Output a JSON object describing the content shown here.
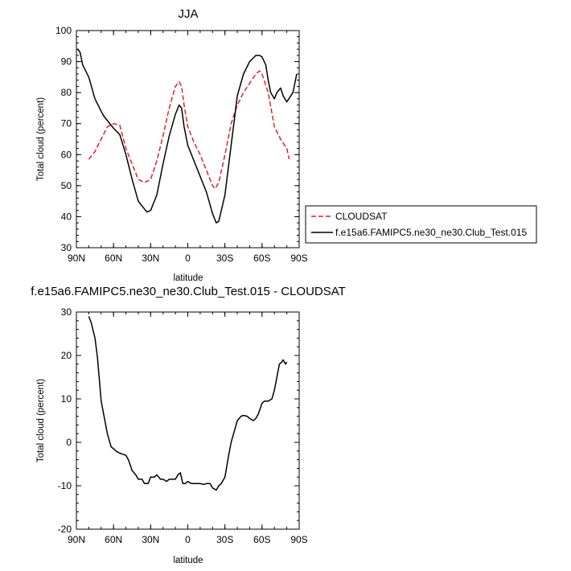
{
  "chart_data": [
    {
      "type": "line",
      "title": "JJA",
      "xlabel": "latitude",
      "ylabel": "Total cloud (percent)",
      "xlim": [
        90,
        -90
      ],
      "ylim": [
        30,
        100
      ],
      "xticks": [
        90,
        60,
        30,
        0,
        -30,
        -60,
        -90
      ],
      "xtick_labels": [
        "90N",
        "60N",
        "30N",
        "0",
        "30S",
        "60S",
        "90S"
      ],
      "yticks": [
        30,
        40,
        50,
        60,
        70,
        80,
        90,
        100
      ],
      "ytick_labels": [
        "30",
        "40",
        "50",
        "60",
        "70",
        "80",
        "90",
        "100"
      ],
      "legend_position": "right",
      "grid": false,
      "series": [
        {
          "name": "CLOUDSAT",
          "color": "#e0202a",
          "dash": "dashed",
          "x": [
            80,
            75,
            70,
            65,
            60,
            55,
            50,
            45,
            40,
            35,
            30,
            25,
            20,
            15,
            10,
            7,
            5,
            3,
            0,
            -5,
            -10,
            -15,
            -20,
            -22,
            -25,
            -30,
            -35,
            -40,
            -45,
            -50,
            -55,
            -58,
            -60,
            -65,
            -70,
            -75,
            -80,
            -82
          ],
          "y": [
            58.5,
            61,
            65,
            69,
            70,
            69.5,
            62,
            57,
            52,
            51,
            52,
            58,
            66,
            75,
            82,
            83.5,
            82,
            76,
            69,
            64,
            60,
            55,
            50,
            49,
            51,
            60,
            70,
            76,
            80,
            83,
            86,
            87,
            86,
            80,
            69,
            65,
            62,
            58.5
          ]
        },
        {
          "name": "f.e15a6.FAMIPC5.ne30_ne30.Club_Test.015",
          "color": "#000000",
          "dash": "solid",
          "x": [
            89,
            87,
            85,
            80,
            75,
            70,
            68,
            65,
            60,
            55,
            50,
            45,
            40,
            35,
            33,
            30,
            27,
            25,
            20,
            15,
            10,
            7,
            5,
            3,
            0,
            -5,
            -10,
            -15,
            -20,
            -23,
            -25,
            -30,
            -35,
            -40,
            -45,
            -50,
            -55,
            -58,
            -60,
            -63,
            -65,
            -67,
            -70,
            -72,
            -75,
            -77,
            -80,
            -85,
            -88
          ],
          "y": [
            94,
            93,
            89,
            85,
            78,
            74,
            72.5,
            71,
            68.5,
            66.5,
            60,
            52,
            45,
            42.5,
            41.5,
            42,
            45,
            47,
            57,
            66,
            73,
            76,
            75,
            69,
            63,
            58,
            53,
            48,
            41,
            38,
            38.5,
            47,
            63,
            79,
            86,
            90,
            92,
            92,
            91.5,
            89,
            84,
            80,
            78,
            80,
            81.5,
            79,
            77,
            80,
            86
          ]
        }
      ]
    },
    {
      "type": "line",
      "title": "f.e15a6.FAMIPC5.ne30_ne30.Club_Test.015 - CLOUDSAT",
      "xlabel": "latitude",
      "ylabel": "Total cloud (percent)",
      "xlim": [
        90,
        -90
      ],
      "ylim": [
        -20,
        30
      ],
      "xticks": [
        90,
        60,
        30,
        0,
        -30,
        -60,
        -90
      ],
      "xtick_labels": [
        "90N",
        "60N",
        "30N",
        "0",
        "30S",
        "60S",
        "90S"
      ],
      "yticks": [
        -20,
        -10,
        0,
        10,
        20,
        30
      ],
      "ytick_labels": [
        "-20",
        "-10",
        "0",
        "10",
        "20",
        "30"
      ],
      "grid": false,
      "series": [
        {
          "color": "#000000",
          "x": [
            80,
            78,
            75,
            73,
            70,
            67,
            65,
            62,
            60,
            58,
            55,
            52,
            50,
            48,
            45,
            42,
            40,
            37,
            35,
            32,
            30,
            27,
            25,
            22,
            20,
            17,
            15,
            12,
            10,
            8,
            6,
            4,
            2,
            0,
            -3,
            -5,
            -8,
            -10,
            -13,
            -15,
            -18,
            -20,
            -23,
            -25,
            -27,
            -30,
            -33,
            -35,
            -38,
            -40,
            -43,
            -45,
            -48,
            -50,
            -53,
            -55,
            -57,
            -60,
            -62,
            -65,
            -68,
            -70,
            -72,
            -74,
            -76,
            -77,
            -78,
            -79,
            -80
          ],
          "y": [
            29,
            27.5,
            24,
            19.5,
            9.5,
            5,
            2,
            -1,
            -1.5,
            -2,
            -2.5,
            -2.8,
            -3,
            -4,
            -6.5,
            -7.5,
            -8.5,
            -8.5,
            -9.5,
            -9.5,
            -8,
            -8,
            -7.5,
            -8.5,
            -8.5,
            -9,
            -8.5,
            -8.5,
            -8.5,
            -7.5,
            -7,
            -9.5,
            -9.5,
            -9,
            -9.5,
            -9.5,
            -9.5,
            -9.5,
            -9.7,
            -9.5,
            -9.5,
            -10.5,
            -11,
            -10,
            -9.5,
            -8,
            -3,
            0,
            3,
            5,
            6,
            6.2,
            6,
            5.5,
            5,
            5.5,
            6.5,
            9,
            9.5,
            9.5,
            10,
            12,
            15,
            18,
            18.5,
            19,
            18.5,
            18,
            18.5
          ]
        }
      ]
    }
  ],
  "legend": [
    {
      "label": "CLOUDSAT"
    },
    {
      "label": "f.e15a6.FAMIPC5.ne30_ne30.Club_Test.015"
    }
  ]
}
